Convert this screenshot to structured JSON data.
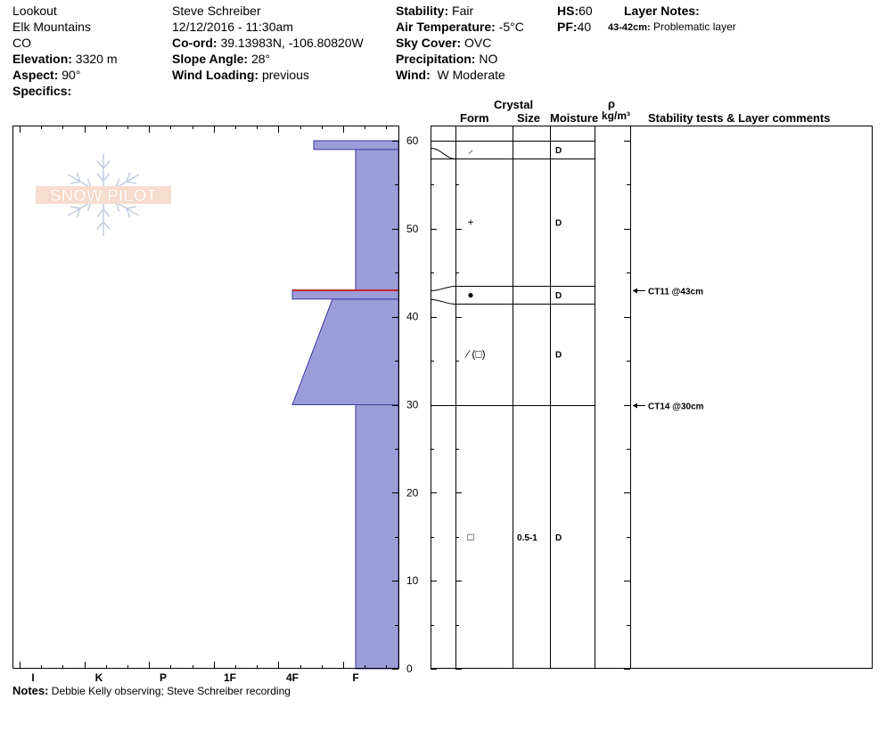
{
  "header": {
    "col1": {
      "location": "Lookout",
      "range": "Elk Mountains",
      "state": "CO",
      "elevation_label": "Elevation:",
      "elevation": "3320 m",
      "aspect_label": "Aspect:",
      "aspect": "90°",
      "specifics_label": "Specifics:"
    },
    "col2": {
      "observer": "Steve Schreiber",
      "datetime": "12/12/2016 - 11:30am",
      "coord_label": "Co-ord:",
      "coord": "39.13983N, -106.80820W",
      "slope_label": "Slope Angle:",
      "slope": "28°",
      "wind_loading_label": "Wind Loading:",
      "wind_loading": "previous"
    },
    "col3": {
      "stability_label": "Stability:",
      "stability": "Fair",
      "air_temp_label": "Air Temperature:",
      "air_temp": "-5°C",
      "sky_label": "Sky Cover:",
      "sky": "OVC",
      "precip_label": "Precipitation:",
      "precip": "NO",
      "wind_label": "Wind:",
      "wind": "W Moderate"
    },
    "col4": {
      "hs_label": "HS:",
      "hs": "60",
      "pf_label": "PF:",
      "pf": "40",
      "layer_notes_label": "Layer Notes:",
      "layer_note_range": "43-42cm:",
      "layer_note_text": "Problematic layer"
    }
  },
  "logo_text": "SNOW PILOT",
  "table_headers": {
    "crystal": "Crystal",
    "form": "Form",
    "size": "Size",
    "moisture": "Moisture",
    "rho": "ρ",
    "density_unit": "kg/m³",
    "comments": "Stability tests & Layer comments"
  },
  "notes_label": "Notes:",
  "notes": "Debbie Kelly observing; Steve Schreiber recording",
  "colors": {
    "profile_fill": "#9c9cd8",
    "profile_edge": "#3a3aa0",
    "weak_layer": "#c0282c"
  },
  "chart_data": {
    "type": "area",
    "x_categories": [
      "I",
      "K",
      "P",
      "1F",
      "4F",
      "F"
    ],
    "y_ticks": [
      0,
      10,
      20,
      30,
      40,
      50,
      60
    ],
    "ylim": [
      0,
      60
    ],
    "hardness_profile": [
      {
        "bottom": 0,
        "top": 30,
        "hardness": "F"
      },
      {
        "bottom": 30,
        "top": 42,
        "hardness_bottom": "4F",
        "hardness_top": "F+"
      },
      {
        "bottom": 42,
        "top": 43,
        "hardness": "4F"
      },
      {
        "bottom": 43,
        "top": 59,
        "hardness": "F"
      },
      {
        "bottom": 59,
        "top": 60,
        "hardness": "4F-"
      }
    ],
    "layers": [
      {
        "top": 60,
        "bottom": 58,
        "form": "⸝",
        "size": "",
        "moisture": "D"
      },
      {
        "top": 58,
        "bottom": 43.5,
        "form": "+",
        "size": "",
        "moisture": "D"
      },
      {
        "top": 43.5,
        "bottom": 41.5,
        "form": "●",
        "size": "",
        "moisture": "D"
      },
      {
        "top": 41.5,
        "bottom": 30,
        "form": "∕ (□)",
        "size": "",
        "moisture": "D"
      },
      {
        "top": 30,
        "bottom": 0,
        "form": "□",
        "size": "0.5-1",
        "moisture": "D"
      }
    ],
    "stability_tests": [
      {
        "depth": 43,
        "label": "CT11 @43cm"
      },
      {
        "depth": 30,
        "label": "CT14 @30cm"
      }
    ],
    "weak_layer_depth": 43
  }
}
